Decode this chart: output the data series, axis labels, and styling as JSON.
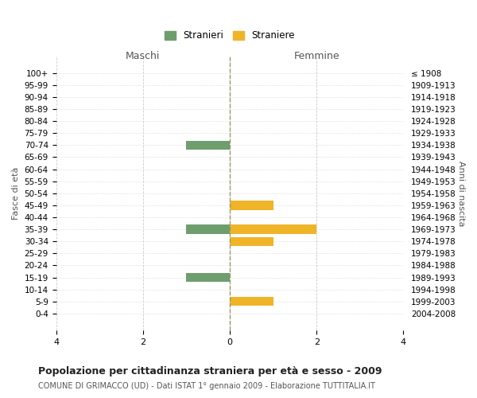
{
  "age_groups": [
    "0-4",
    "5-9",
    "10-14",
    "15-19",
    "20-24",
    "25-29",
    "30-34",
    "35-39",
    "40-44",
    "45-49",
    "50-54",
    "55-59",
    "60-64",
    "65-69",
    "70-74",
    "75-79",
    "80-84",
    "85-89",
    "90-94",
    "95-99",
    "100+"
  ],
  "birth_years": [
    "2004-2008",
    "1999-2003",
    "1994-1998",
    "1989-1993",
    "1984-1988",
    "1979-1983",
    "1974-1978",
    "1969-1973",
    "1964-1968",
    "1959-1963",
    "1954-1958",
    "1949-1953",
    "1944-1948",
    "1939-1943",
    "1934-1938",
    "1929-1933",
    "1924-1928",
    "1919-1923",
    "1914-1918",
    "1909-1913",
    "≤ 1908"
  ],
  "males": [
    0,
    0,
    0,
    1,
    0,
    0,
    0,
    1,
    0,
    0,
    0,
    0,
    0,
    0,
    1,
    0,
    0,
    0,
    0,
    0,
    0
  ],
  "females": [
    0,
    1,
    0,
    0,
    0,
    0,
    1,
    2,
    0,
    1,
    0,
    0,
    0,
    0,
    0,
    0,
    0,
    0,
    0,
    0,
    0
  ],
  "male_color": "#6e9e6e",
  "female_color": "#f0b429",
  "xlim": 4,
  "title": "Popolazione per cittadinanza straniera per età e sesso - 2009",
  "subtitle": "COMUNE DI GRIMACCO (UD) - Dati ISTAT 1° gennaio 2009 - Elaborazione TUTTITALIA.IT",
  "xlabel_left": "Maschi",
  "xlabel_right": "Femmine",
  "ylabel_left": "Fasce di età",
  "ylabel_right": "Anni di nascita",
  "legend_stranieri": "Stranieri",
  "legend_straniere": "Straniere",
  "background_color": "#ffffff",
  "grid_color": "#cccccc",
  "bar_height": 0.75
}
